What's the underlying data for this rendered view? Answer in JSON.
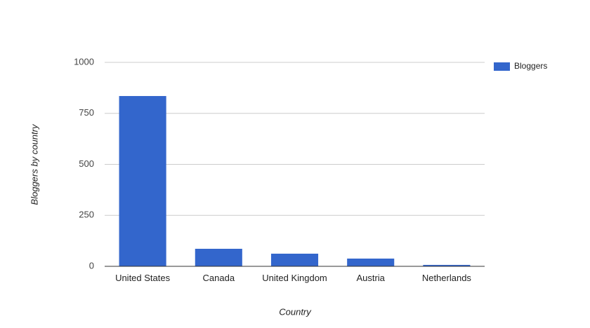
{
  "chart_data": {
    "type": "bar",
    "x_label": "Country",
    "y_label": "Bloggers by country",
    "categories": [
      "United States",
      "Canada",
      "United Kingdom",
      "Austria",
      "Netherlands"
    ],
    "series": [
      {
        "name": "Bloggers",
        "color": "#3366cc",
        "values": [
          835,
          86,
          62,
          38,
          7
        ]
      }
    ],
    "ylim": [
      0,
      1000
    ],
    "yticks": [
      0,
      250,
      500,
      750,
      1000
    ],
    "grid": true,
    "legend": "right"
  }
}
